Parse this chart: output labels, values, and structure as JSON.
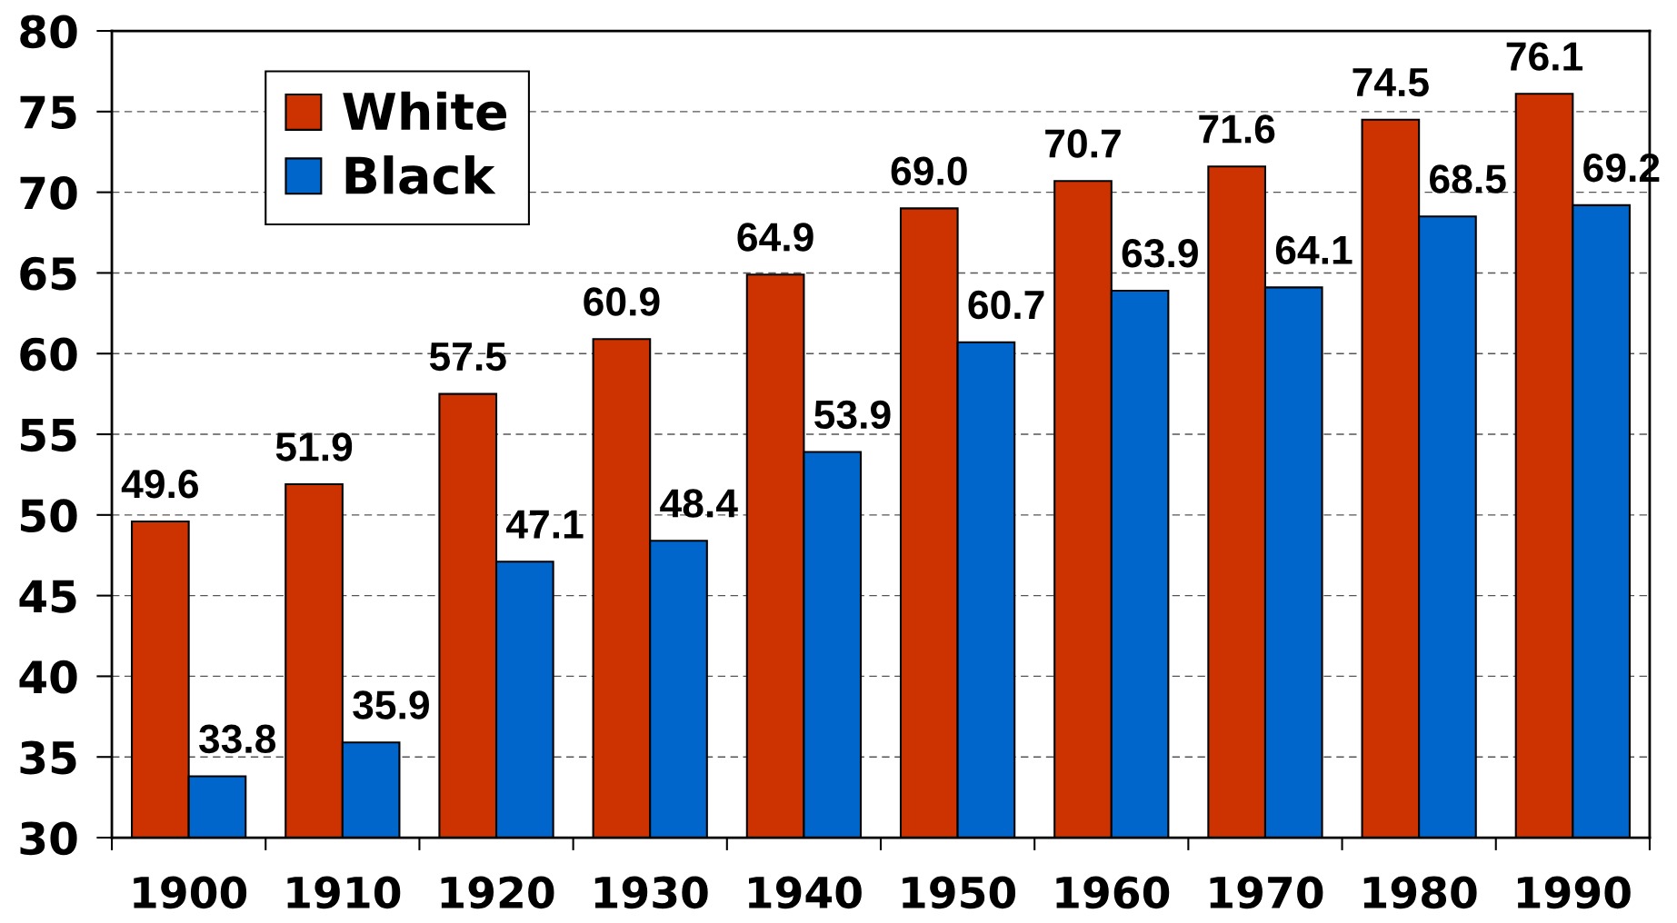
{
  "chart_data": {
    "type": "bar",
    "categories": [
      "1900",
      "1910",
      "1920",
      "1930",
      "1940",
      "1950",
      "1960",
      "1970",
      "1980",
      "1990"
    ],
    "series": [
      {
        "name": "White",
        "color": "#cc3300",
        "values": [
          49.6,
          51.9,
          57.5,
          60.9,
          64.9,
          69.0,
          70.7,
          71.6,
          74.5,
          76.1
        ],
        "value_labels": [
          "49.6",
          "51.9",
          "57.5",
          "60.9",
          "64.9",
          "69.0",
          "70.7",
          "71.6",
          "74.5",
          "76.1"
        ]
      },
      {
        "name": "Black",
        "color": "#0066cc",
        "values": [
          33.8,
          35.9,
          47.1,
          48.4,
          53.9,
          60.7,
          63.9,
          64.1,
          68.5,
          69.2
        ],
        "value_labels": [
          "33.8",
          "35.9",
          "47.1",
          "48.4",
          "53.9",
          "60.7",
          "63.9",
          "64.1",
          "68.5",
          "69.2"
        ]
      }
    ],
    "ylim": [
      30,
      80
    ],
    "yticks": [
      30,
      35,
      40,
      45,
      50,
      55,
      60,
      65,
      70,
      75,
      80
    ],
    "grid": "y",
    "legend": "top left"
  }
}
